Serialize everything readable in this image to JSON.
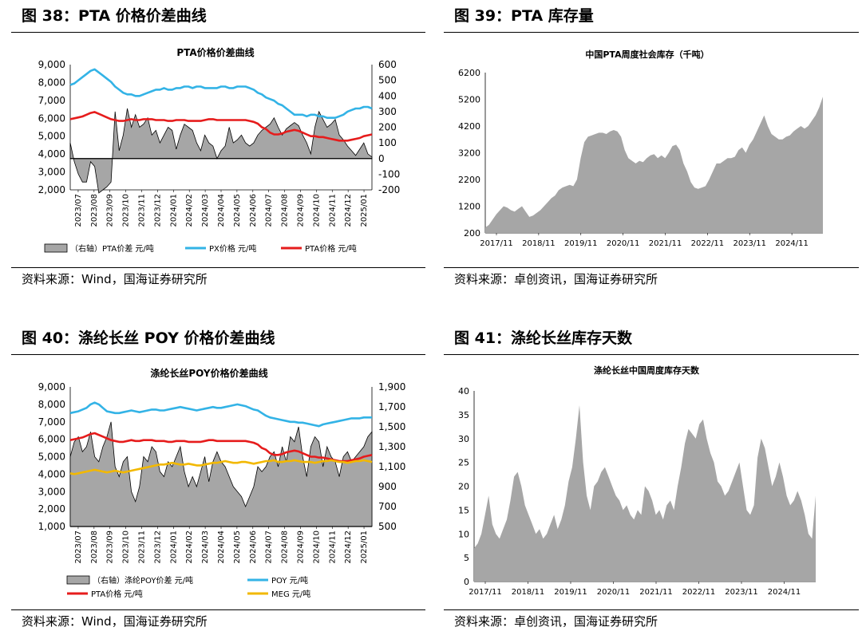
{
  "panels": [
    {
      "figure_title": "图 38：PTA 价格价差曲线",
      "source": "资料来源：Wind，国海证券研究所",
      "chart_data": {
        "type": "line",
        "title": "PTA价格价差曲线",
        "y_left": {
          "ticks": [
            "9,000",
            "8,000",
            "7,000",
            "6,000",
            "5,000",
            "4,000",
            "3,000",
            "2,000"
          ],
          "ylim": [
            2000,
            9000
          ]
        },
        "y_right": {
          "ticks": [
            "600",
            "500",
            "400",
            "300",
            "200",
            "100",
            "0",
            "-100",
            "-200"
          ],
          "ylim": [
            -200,
            600
          ]
        },
        "x_ticks": [
          "2023/07",
          "2023/08",
          "2023/09",
          "2023/10",
          "2023/11",
          "2023/12",
          "2024/01",
          "2024/02",
          "2024/03",
          "2024/04",
          "2024/05",
          "2024/06",
          "2024/07",
          "2024/08",
          "2024/09",
          "2024/10",
          "2024/11",
          "2024/12",
          "2025/01"
        ],
        "legend": [
          "（右轴）PTA价差 元/吨",
          "PX价格 元/吨",
          "PTA价格 元/吨"
        ],
        "series": [
          {
            "name": "（右轴）PTA价差 元/吨",
            "kind": "area",
            "axis": "right",
            "color": "#a6a6a6",
            "values": [
              100,
              -20,
              -100,
              -150,
              -150,
              -20,
              -50,
              -220,
              -200,
              -180,
              -150,
              300,
              50,
              150,
              320,
              200,
              280,
              200,
              220,
              260,
              150,
              180,
              100,
              150,
              200,
              180,
              60,
              150,
              220,
              200,
              180,
              100,
              50,
              150,
              100,
              80,
              0,
              50,
              80,
              200,
              100,
              120,
              150,
              100,
              80,
              100,
              150,
              180,
              200,
              220,
              260,
              200,
              150,
              190,
              210,
              230,
              210,
              150,
              100,
              30,
              200,
              300,
              250,
              200,
              220,
              250,
              150,
              120,
              80,
              50,
              20,
              60,
              100,
              30,
              10
            ]
          },
          {
            "name": "PX价格 元/吨",
            "kind": "line",
            "axis": "right",
            "color": "#33b3e6",
            "values": [
              470,
              480,
              500,
              520,
              540,
              560,
              570,
              550,
              530,
              510,
              490,
              460,
              440,
              420,
              410,
              410,
              400,
              400,
              410,
              420,
              430,
              440,
              440,
              450,
              440,
              440,
              450,
              450,
              460,
              460,
              450,
              460,
              460,
              450,
              450,
              450,
              450,
              460,
              460,
              450,
              450,
              460,
              460,
              460,
              450,
              440,
              420,
              410,
              390,
              380,
              370,
              350,
              340,
              320,
              300,
              280,
              280,
              280,
              270,
              280,
              280,
              270,
              270,
              260,
              260,
              260,
              270,
              280,
              300,
              310,
              320,
              320,
              330,
              330,
              320
            ]
          },
          {
            "name": "PTA价格 元/吨",
            "kind": "line",
            "axis": "left",
            "color": "#e61c1c",
            "values": [
              5950,
              6000,
              6050,
              6100,
              6200,
              6300,
              6350,
              6250,
              6150,
              6050,
              5950,
              5900,
              5850,
              5850,
              5900,
              5950,
              5900,
              5900,
              5950,
              5950,
              5950,
              5900,
              5900,
              5900,
              5850,
              5850,
              5900,
              5900,
              5900,
              5850,
              5850,
              5850,
              5850,
              5900,
              5950,
              5950,
              5900,
              5900,
              5900,
              5900,
              5900,
              5900,
              5900,
              5900,
              5850,
              5800,
              5700,
              5500,
              5400,
              5200,
              5100,
              5100,
              5150,
              5250,
              5300,
              5350,
              5300,
              5200,
              5100,
              5000,
              5000,
              4950,
              4950,
              4900,
              4850,
              4800,
              4750,
              4750,
              4750,
              4800,
              4850,
              4900,
              5000,
              5050,
              5100
            ]
          }
        ]
      }
    },
    {
      "figure_title": "图 39：PTA 库存量",
      "source": "资料来源：卓创资讯，国海证券研究所",
      "chart_data": {
        "type": "area",
        "title": "中国PTA周度社会库存（千吨）",
        "y": {
          "ticks": [
            "6200",
            "5200",
            "4200",
            "3200",
            "2200",
            "1200",
            "200"
          ],
          "ylim": [
            200,
            6200
          ]
        },
        "x_ticks": [
          "2017/11",
          "2018/11",
          "2019/11",
          "2020/11",
          "2021/11",
          "2022/11",
          "2023/11",
          "2024/11"
        ],
        "series": [
          {
            "name": "",
            "color": "#a6a6a6",
            "values": [
              400,
              500,
              700,
              900,
              1050,
              1200,
              1150,
              1050,
              1000,
              1100,
              1200,
              1000,
              800,
              850,
              950,
              1050,
              1200,
              1350,
              1500,
              1600,
              1800,
              1900,
              1950,
              2000,
              1950,
              2200,
              3000,
              3600,
              3800,
              3850,
              3900,
              3950,
              3950,
              3900,
              4000,
              4050,
              4000,
              3800,
              3300,
              3000,
              2900,
              2800,
              2900,
              2850,
              3000,
              3100,
              3150,
              3000,
              3100,
              3000,
              3200,
              3450,
              3500,
              3300,
              2800,
              2500,
              2100,
              1900,
              1850,
              1900,
              1950,
              2200,
              2500,
              2800,
              2800,
              2900,
              3000,
              3000,
              3050,
              3300,
              3400,
              3200,
              3500,
              3700,
              4000,
              4300,
              4600,
              4200,
              3900,
              3800,
              3700,
              3700,
              3800,
              3850,
              4000,
              4100,
              4200,
              4100,
              4200,
              4400,
              4600,
              4900,
              5300
            ]
          }
        ]
      }
    },
    {
      "figure_title": "图 40：涤纶长丝 POY 价格价差曲线",
      "source": "资料来源：Wind，国海证券研究所",
      "chart_data": {
        "type": "line",
        "title": "涤纶长丝POY价格价差曲线",
        "y_left": {
          "ticks": [
            "9,000",
            "8,000",
            "7,000",
            "6,000",
            "5,000",
            "4,000",
            "3,000",
            "2,000",
            "1,000"
          ],
          "ylim": [
            1000,
            9000
          ]
        },
        "y_right": {
          "ticks": [
            "1,900",
            "1,700",
            "1,500",
            "1,300",
            "1,100",
            "900",
            "700",
            "500"
          ],
          "ylim": [
            500,
            1900
          ]
        },
        "x_ticks": [
          "2023/07",
          "2023/08",
          "2023/09",
          "2023/10",
          "2023/11",
          "2023/12",
          "2024/01",
          "2024/02",
          "2024/03",
          "2024/04",
          "2024/05",
          "2024/06",
          "2024/07",
          "2024/08",
          "2024/09",
          "2024/10",
          "2024/11",
          "2024/12",
          "2025/01"
        ],
        "legend": [
          "（右轴）涤纶POY价差 元/吨",
          "POY 元/吨",
          "PTA价格 元/吨",
          "MEG 元/吨"
        ],
        "series": [
          {
            "name": "（右轴）涤纶POY价差 元/吨",
            "kind": "area",
            "axis": "right",
            "color": "#a6a6a6",
            "values": [
              1200,
              1350,
              1400,
              1250,
              1300,
              1450,
              1200,
              1150,
              1300,
              1400,
              1550,
              1100,
              1000,
              1150,
              1200,
              850,
              750,
              900,
              1200,
              1150,
              1300,
              1250,
              1050,
              1000,
              1150,
              1100,
              1200,
              1300,
              1050,
              900,
              1000,
              900,
              1050,
              1200,
              950,
              1150,
              1250,
              1150,
              1100,
              1000,
              900,
              850,
              800,
              700,
              800,
              900,
              1100,
              1050,
              1100,
              1200,
              1250,
              1100,
              1300,
              1150,
              1400,
              1350,
              1500,
              1200,
              1000,
              1300,
              1400,
              1350,
              1100,
              1300,
              1200,
              1150,
              1000,
              1200,
              1250,
              1150,
              1200,
              1250,
              1300,
              1400,
              1450
            ]
          },
          {
            "name": "POY 元/吨",
            "kind": "line",
            "axis": "left",
            "color": "#33b3e6",
            "values": [
              7500,
              7550,
              7600,
              7700,
              7800,
              8000,
              8100,
              8000,
              7800,
              7600,
              7550,
              7500,
              7500,
              7550,
              7600,
              7650,
              7600,
              7550,
              7600,
              7650,
              7700,
              7700,
              7650,
              7650,
              7700,
              7750,
              7800,
              7850,
              7800,
              7750,
              7700,
              7650,
              7700,
              7750,
              7800,
              7850,
              7800,
              7800,
              7850,
              7900,
              7950,
              8000,
              7950,
              7900,
              7800,
              7700,
              7650,
              7500,
              7350,
              7250,
              7200,
              7150,
              7100,
              7050,
              7000,
              7000,
              6950,
              6950,
              6900,
              6850,
              6800,
              6750,
              6850,
              6900,
              6950,
              7000,
              7050,
              7100,
              7150,
              7200,
              7200,
              7200,
              7250,
              7250,
              7250
            ]
          },
          {
            "name": "PTA价格 元/吨",
            "kind": "line",
            "axis": "left",
            "color": "#e61c1c",
            "values": [
              5950,
              6000,
              6050,
              6100,
              6200,
              6300,
              6350,
              6250,
              6150,
              6050,
              5950,
              5900,
              5850,
              5850,
              5900,
              5950,
              5900,
              5900,
              5950,
              5950,
              5950,
              5900,
              5900,
              5900,
              5850,
              5850,
              5900,
              5900,
              5900,
              5850,
              5850,
              5850,
              5850,
              5900,
              5950,
              5950,
              5900,
              5900,
              5900,
              5900,
              5900,
              5900,
              5900,
              5900,
              5850,
              5800,
              5700,
              5500,
              5400,
              5200,
              5100,
              5100,
              5150,
              5250,
              5300,
              5350,
              5300,
              5200,
              5100,
              5000,
              5000,
              4950,
              4950,
              4900,
              4850,
              4800,
              4750,
              4750,
              4750,
              4800,
              4850,
              4900,
              5000,
              5050,
              5100
            ]
          },
          {
            "name": "MEG 元/吨",
            "kind": "line",
            "axis": "left",
            "color": "#f2b800",
            "values": [
              4050,
              4000,
              4050,
              4100,
              4150,
              4200,
              4250,
              4200,
              4150,
              4100,
              4150,
              4200,
              4150,
              4100,
              4150,
              4200,
              4250,
              4300,
              4350,
              4400,
              4450,
              4500,
              4550,
              4550,
              4600,
              4650,
              4600,
              4550,
              4550,
              4600,
              4550,
              4500,
              4500,
              4550,
              4600,
              4650,
              4650,
              4700,
              4750,
              4700,
              4650,
              4650,
              4700,
              4700,
              4650,
              4600,
              4650,
              4700,
              4750,
              4750,
              4800,
              4700,
              4700,
              4750,
              4750,
              4800,
              4750,
              4700,
              4700,
              4700,
              4650,
              4700,
              4750,
              4750,
              4800,
              4750,
              4700,
              4700,
              4650,
              4700,
              4750,
              4750,
              4800,
              4750,
              4700
            ]
          }
        ]
      }
    },
    {
      "figure_title": "图 41：涤纶长丝库存天数",
      "source": "资料来源：卓创资讯，国海证券研究所",
      "chart_data": {
        "type": "area",
        "title": "涤纶长丝中国周度库存天数",
        "y": {
          "ticks": [
            "40",
            "35",
            "30",
            "25",
            "20",
            "15",
            "10",
            "5",
            "0"
          ],
          "ylim": [
            0,
            40
          ]
        },
        "x_ticks": [
          "2017/11",
          "2018/11",
          "2019/11",
          "2020/11",
          "2021/11",
          "2022/11",
          "2023/11",
          "2024/11"
        ],
        "series": [
          {
            "name": "",
            "color": "#a6a6a6",
            "values": [
              7,
              8,
              10,
              14,
              18,
              12,
              10,
              9,
              11,
              13,
              17,
              22,
              23,
              20,
              16,
              14,
              12,
              10,
              11,
              9,
              10,
              12,
              14,
              11,
              13,
              16,
              21,
              24,
              30,
              37,
              25,
              18,
              15,
              20,
              21,
              23,
              24,
              22,
              20,
              18,
              17,
              15,
              16,
              14,
              13,
              15,
              14,
              20,
              19,
              17,
              14,
              15,
              13,
              16,
              17,
              15,
              20,
              24,
              29,
              32,
              31,
              30,
              33,
              34,
              30,
              27,
              25,
              21,
              20,
              18,
              19,
              21,
              23,
              25,
              20,
              15,
              14,
              16,
              26,
              30,
              28,
              24,
              20,
              22,
              25,
              22,
              18,
              16,
              17,
              19,
              17,
              14,
              10,
              9,
              18
            ]
          }
        ]
      }
    }
  ]
}
